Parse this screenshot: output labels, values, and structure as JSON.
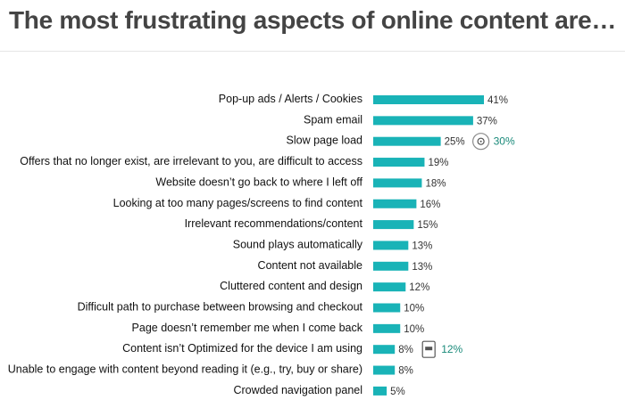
{
  "title": "The most frustrating aspects of online content are…",
  "colors": {
    "bar": "#19b3b7",
    "callout": "#1a8a7a"
  },
  "chart_data": {
    "type": "bar",
    "orientation": "horizontal",
    "title": "The most frustrating aspects of online content are…",
    "categories": [
      "Pop-up ads / Alerts / Cookies",
      "Spam email",
      "Slow page load",
      "Offers that no longer exist, are irrelevant to you, are difficult to access",
      "Website doesn’t go back to where I left off",
      "Looking at too many pages/screens to find content",
      "Irrelevant recommendations/content",
      "Sound plays automatically",
      "Content not available",
      "Cluttered content and design",
      "Difficult path to purchase between browsing and checkout",
      "Page doesn’t remember me when I come back",
      "Content isn’t Optimized for the device I am using",
      "Unable to engage with content beyond reading it (e.g., try, buy or share)",
      "Crowded navigation panel"
    ],
    "values": [
      41,
      37,
      25,
      19,
      18,
      16,
      15,
      13,
      13,
      12,
      10,
      10,
      8,
      8,
      5
    ],
    "value_labels": [
      "41%",
      "37%",
      "25%",
      "19%",
      "18%",
      "16%",
      "15%",
      "13%",
      "13%",
      "12%",
      "10%",
      "10%",
      "8%",
      "8%",
      "5%"
    ],
    "annotations": [
      {
        "category_index": 2,
        "icon": "stopwatch-icon",
        "label": "30%"
      },
      {
        "category_index": 12,
        "icon": "mobile-device-icon",
        "label": "12%"
      }
    ],
    "xlim": [
      0,
      41
    ],
    "grid": false
  }
}
